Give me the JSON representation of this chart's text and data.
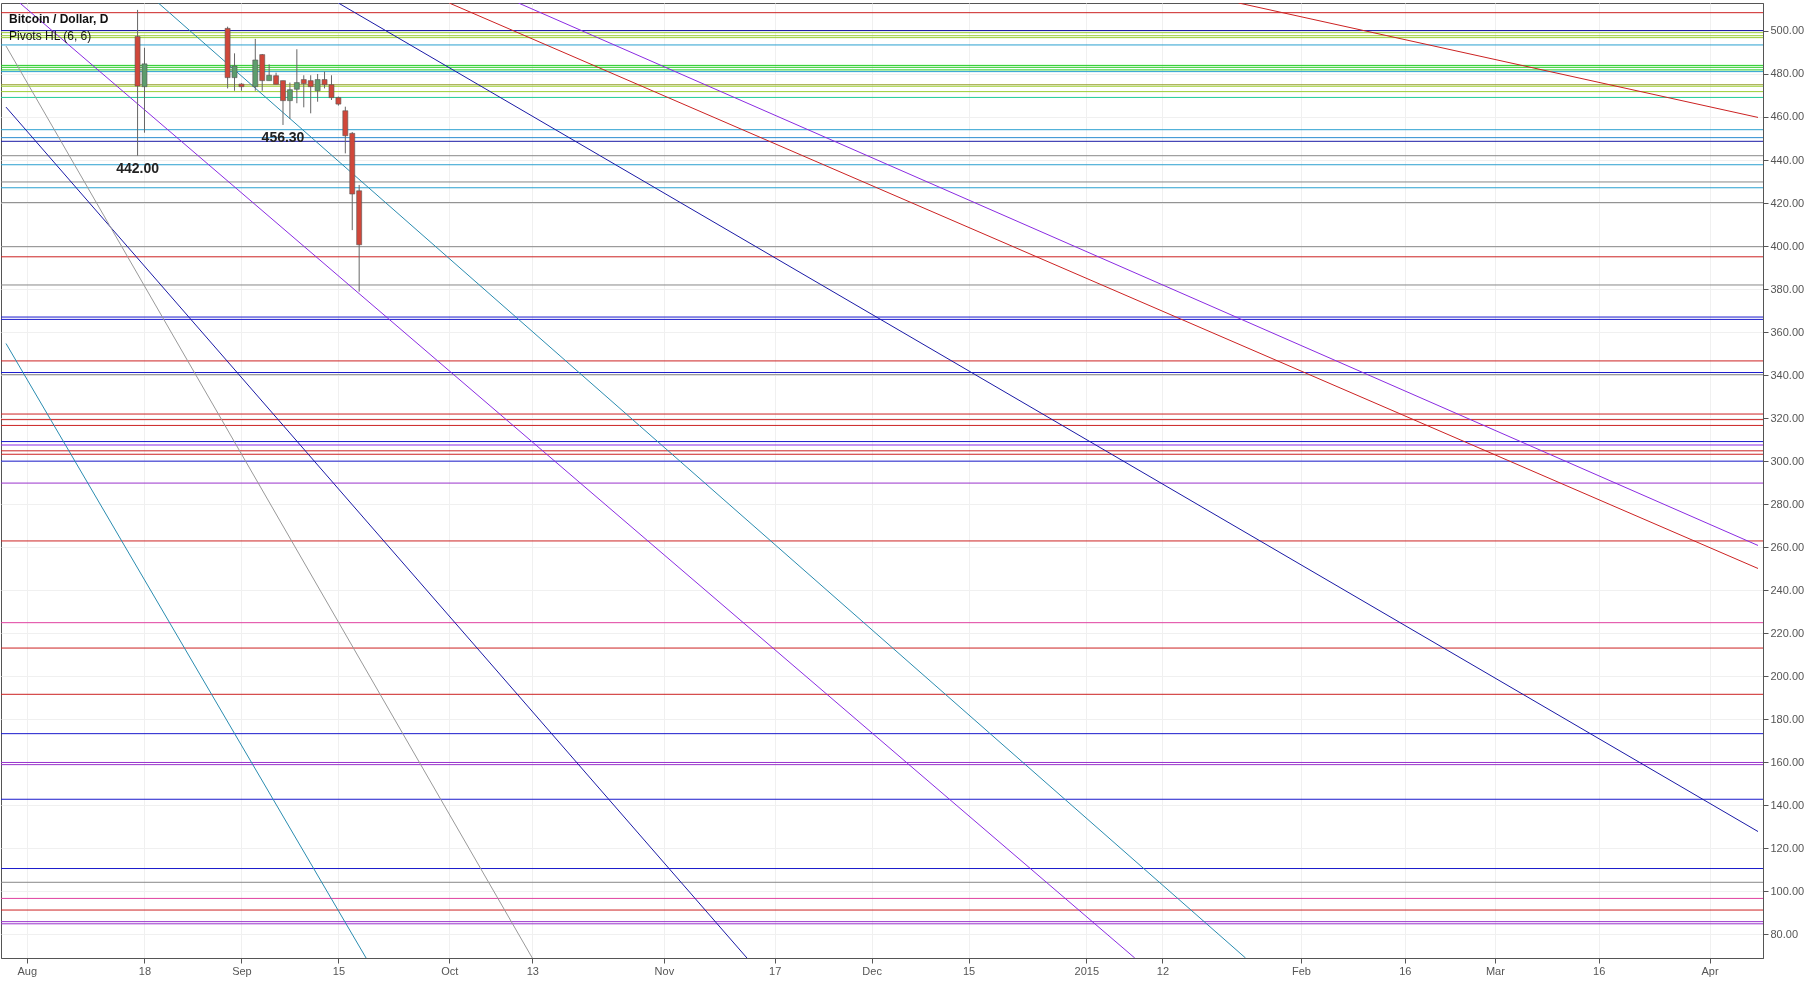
{
  "chart_data": {
    "type": "candlestick",
    "title": "Bitcoin / Dollar, D",
    "subtitle": "Pivots HL (6, 6)",
    "x": [
      "2014-08-17",
      "2014-08-18",
      "2014-08-30",
      "2014-08-31",
      "2014-09-01",
      "2014-09-03",
      "2014-09-04",
      "2014-09-05",
      "2014-09-06",
      "2014-09-07",
      "2014-09-08",
      "2014-09-09",
      "2014-09-10",
      "2014-09-11",
      "2014-09-12",
      "2014-09-13",
      "2014-09-14",
      "2014-09-15",
      "2014-09-16",
      "2014-09-17",
      "2014-09-18"
    ],
    "ohlc": [
      [
        497.4,
        509.8,
        442.0,
        474.4
      ],
      [
        474.1,
        492.2,
        452.7,
        484.7
      ],
      [
        501.2,
        502.0,
        473.3,
        478.3
      ],
      [
        478.3,
        489.6,
        472.2,
        483.7
      ],
      [
        475.3,
        475.7,
        472.2,
        474.1
      ],
      [
        474.1,
        496.3,
        472.2,
        486.5
      ],
      [
        489.0,
        489.3,
        472.2,
        476.9
      ],
      [
        476.9,
        484.5,
        476.9,
        479.4
      ],
      [
        479.2,
        480.6,
        475.2,
        475.2
      ],
      [
        476.9,
        476.9,
        456.3,
        467.6
      ],
      [
        467.6,
        476.0,
        459.1,
        472.7
      ],
      [
        472.9,
        491.5,
        466.4,
        476.0
      ],
      [
        477.4,
        479.4,
        464.5,
        475.5
      ],
      [
        476.9,
        479.4,
        461.7,
        474.1
      ],
      [
        472.2,
        480.0,
        467.1,
        477.4
      ],
      [
        477.4,
        481.1,
        473.3,
        475.0
      ],
      [
        475.0,
        479.4,
        467.9,
        469.0
      ],
      [
        469.0,
        469.5,
        465.3,
        466.0
      ],
      [
        462.9,
        464.8,
        443.1,
        451.3
      ],
      [
        452.4,
        453.0,
        407.4,
        424.2
      ],
      [
        425.7,
        428.4,
        378.8,
        400.6
      ]
    ],
    "colors": [
      "#d0473a",
      "#5d9c6c",
      "#d0473a",
      "#5d9c6c",
      "#d0473a",
      "#5d9c6c",
      "#d0473a",
      "#5d9c6c",
      "#d0473a",
      "#d0473a",
      "#5d9c6c",
      "#5d9c6c",
      "#d0473a",
      "#d0473a",
      "#5d9c6c",
      "#d0473a",
      "#d0473a",
      "#d0473a",
      "#d0473a",
      "#d0473a",
      "#d0473a"
    ],
    "series": [
      {
        "type": "line",
        "color": "#cc2222",
        "x": [
          "2015-01-23",
          "2015-04-08"
        ],
        "values": [
          513,
          459.8
        ]
      },
      {
        "type": "line",
        "color": "#cc2222",
        "x": [
          "2014-10-01",
          "2015-04-08"
        ],
        "values": [
          513,
          250.1
        ]
      },
      {
        "type": "line",
        "color": "#8a2be2",
        "x": [
          "2014-10-11",
          "2015-04-08"
        ],
        "values": [
          513,
          260.8
        ]
      },
      {
        "type": "line",
        "color": "#1a1aa6",
        "x": [
          "2014-09-15",
          "2015-04-08"
        ],
        "values": [
          513,
          127.8
        ]
      },
      {
        "type": "line",
        "color": "#2a8cb0",
        "x": [
          "2014-08-20",
          "2015-01-24"
        ],
        "values": [
          513,
          69
        ]
      },
      {
        "type": "line",
        "color": "#8a2be2",
        "x": [
          "2014-07-31",
          "2015-01-08"
        ],
        "values": [
          513,
          69
        ]
      },
      {
        "type": "line",
        "color": "#1a1aa6",
        "x": [
          "2014-07-29",
          "2014-11-13"
        ],
        "values": [
          464.6,
          69
        ]
      },
      {
        "type": "line",
        "color": "#999999",
        "x": [
          "2014-07-29",
          "2014-10-13"
        ],
        "values": [
          493.0,
          69
        ]
      },
      {
        "type": "line",
        "color": "#2a8cb0",
        "x": [
          "2014-07-29",
          "2014-09-19"
        ],
        "values": [
          354.7,
          69
        ]
      }
    ],
    "ref_lines": [
      {
        "axis": "y",
        "value": 508.5,
        "color": "#cc2222"
      },
      {
        "axis": "y",
        "value": 500.2,
        "color": "#1a1aa6"
      },
      {
        "axis": "y",
        "value": 499.2,
        "color": "#9acd32"
      },
      {
        "axis": "y",
        "value": 497.8,
        "color": "#9acd32"
      },
      {
        "axis": "y",
        "value": 496.9,
        "color": "#9acd32"
      },
      {
        "axis": "y",
        "value": 493.5,
        "color": "#2aa0d0"
      },
      {
        "axis": "y",
        "value": 484.0,
        "color": "#22cc22"
      },
      {
        "axis": "y",
        "value": 483.1,
        "color": "#22cc22"
      },
      {
        "axis": "y",
        "value": 481.9,
        "color": "#22cc22"
      },
      {
        "axis": "y",
        "value": 481.1,
        "color": "#2aa0d0"
      },
      {
        "axis": "y",
        "value": 475.0,
        "color": "#9aa032"
      },
      {
        "axis": "y",
        "value": 474.3,
        "color": "#9acd32"
      },
      {
        "axis": "y",
        "value": 471.8,
        "color": "#9acd32"
      },
      {
        "axis": "y",
        "value": 469.1,
        "color": "#22cc99"
      },
      {
        "axis": "y",
        "value": 454.1,
        "color": "#2aa0d0"
      },
      {
        "axis": "y",
        "value": 450.4,
        "color": "#2a8cd0"
      },
      {
        "axis": "y",
        "value": 448.7,
        "color": "#1a1aa6"
      },
      {
        "axis": "y",
        "value": 442.0,
        "color": "#888888"
      },
      {
        "axis": "y",
        "value": 437.8,
        "color": "#2aa0d0"
      },
      {
        "axis": "y",
        "value": 429.8,
        "color": "#888888"
      },
      {
        "axis": "y",
        "value": 427.1,
        "color": "#2aa0d0"
      },
      {
        "axis": "y",
        "value": 420.2,
        "color": "#888888"
      },
      {
        "axis": "y",
        "value": 399.7,
        "color": "#888888"
      },
      {
        "axis": "y",
        "value": 395.0,
        "color": "#cc2222"
      },
      {
        "axis": "y",
        "value": 381.9,
        "color": "#888888"
      },
      {
        "axis": "y",
        "value": 367.0,
        "color": "#1a1acc"
      },
      {
        "axis": "y",
        "value": 365.9,
        "color": "#1a1acc"
      },
      {
        "axis": "y",
        "value": 346.6,
        "color": "#cc2222"
      },
      {
        "axis": "y",
        "value": 341.2,
        "color": "#1a1acc"
      },
      {
        "axis": "y",
        "value": 340.2,
        "color": "#888888"
      },
      {
        "axis": "y",
        "value": 321.9,
        "color": "#cc2222"
      },
      {
        "axis": "y",
        "value": 319.3,
        "color": "#cc2222"
      },
      {
        "axis": "y",
        "value": 316.6,
        "color": "#cc2222"
      },
      {
        "axis": "y",
        "value": 309.1,
        "color": "#1a1acc"
      },
      {
        "axis": "y",
        "value": 307.5,
        "color": "#8a2be2"
      },
      {
        "axis": "y",
        "value": 304.8,
        "color": "#cc2222"
      },
      {
        "axis": "y",
        "value": 303.2,
        "color": "#cc2222"
      },
      {
        "axis": "y",
        "value": 300.0,
        "color": "#1a1acc"
      },
      {
        "axis": "y",
        "value": 289.8,
        "color": "#9933cc"
      },
      {
        "axis": "y",
        "value": 262.9,
        "color": "#cc2222"
      },
      {
        "axis": "y",
        "value": 224.9,
        "color": "#e040a0"
      },
      {
        "axis": "y",
        "value": 213.1,
        "color": "#cc2222"
      },
      {
        "axis": "y",
        "value": 191.6,
        "color": "#cc2222"
      },
      {
        "axis": "y",
        "value": 173.3,
        "color": "#1a1acc"
      },
      {
        "axis": "y",
        "value": 159.9,
        "color": "#9933cc"
      },
      {
        "axis": "y",
        "value": 158.9,
        "color": "#9933cc"
      },
      {
        "axis": "y",
        "value": 142.8,
        "color": "#1a1acc"
      },
      {
        "axis": "y",
        "value": 110.6,
        "color": "#1a1acc"
      },
      {
        "axis": "y",
        "value": 104.2,
        "color": "#888888"
      },
      {
        "axis": "y",
        "value": 96.7,
        "color": "#e040a0"
      },
      {
        "axis": "y",
        "value": 91.3,
        "color": "#cc2222"
      },
      {
        "axis": "y",
        "value": 85.9,
        "color": "#9933cc"
      },
      {
        "axis": "y",
        "value": 84.9,
        "color": "#9933cc"
      }
    ],
    "annotations": [
      {
        "text": "442.00",
        "x": "2014-08-17",
        "y": 442.0
      },
      {
        "text": "456.30",
        "x": "2014-09-07",
        "y": 456.3
      }
    ],
    "xlim": [
      "2014-07-29",
      "2015-04-08"
    ],
    "ylim": [
      69,
      513
    ],
    "xticks": [
      {
        "value": "2014-08-01",
        "label": "Aug"
      },
      {
        "value": "2014-08-18",
        "label": "18"
      },
      {
        "value": "2014-09-01",
        "label": "Sep"
      },
      {
        "value": "2014-09-15",
        "label": "15"
      },
      {
        "value": "2014-10-01",
        "label": "Oct"
      },
      {
        "value": "2014-10-13",
        "label": "13"
      },
      {
        "value": "2014-11-01",
        "label": "Nov"
      },
      {
        "value": "2014-11-17",
        "label": "17"
      },
      {
        "value": "2014-12-01",
        "label": "Dec"
      },
      {
        "value": "2014-12-15",
        "label": "15"
      },
      {
        "value": "2015-01-01",
        "label": "2015"
      },
      {
        "value": "2015-01-12",
        "label": "12"
      },
      {
        "value": "2015-02-01",
        "label": "Feb"
      },
      {
        "value": "2015-02-16",
        "label": "16"
      },
      {
        "value": "2015-03-01",
        "label": "Mar"
      },
      {
        "value": "2015-03-16",
        "label": "16"
      },
      {
        "value": "2015-04-01",
        "label": "Apr"
      }
    ],
    "yticks": [
      {
        "value": 80,
        "label": "80.00"
      },
      {
        "value": 100,
        "label": "100.00"
      },
      {
        "value": 120,
        "label": "120.00"
      },
      {
        "value": 140,
        "label": "140.00"
      },
      {
        "value": 160,
        "label": "160.00"
      },
      {
        "value": 180,
        "label": "180.00"
      },
      {
        "value": 200,
        "label": "200.00"
      },
      {
        "value": 220,
        "label": "220.00"
      },
      {
        "value": 240,
        "label": "240.00"
      },
      {
        "value": 260,
        "label": "260.00"
      },
      {
        "value": 280,
        "label": "280.00"
      },
      {
        "value": 300,
        "label": "300.00"
      },
      {
        "value": 320,
        "label": "320.00"
      },
      {
        "value": 340,
        "label": "340.00"
      },
      {
        "value": 360,
        "label": "360.00"
      },
      {
        "value": 380,
        "label": "380.00"
      },
      {
        "value": 400,
        "label": "400.00"
      },
      {
        "value": 420,
        "label": "420.00"
      },
      {
        "value": 440,
        "label": "440.00"
      },
      {
        "value": 460,
        "label": "460.00"
      },
      {
        "value": 480,
        "label": "480.00"
      },
      {
        "value": 500,
        "label": "500.00"
      }
    ],
    "grid": true
  }
}
